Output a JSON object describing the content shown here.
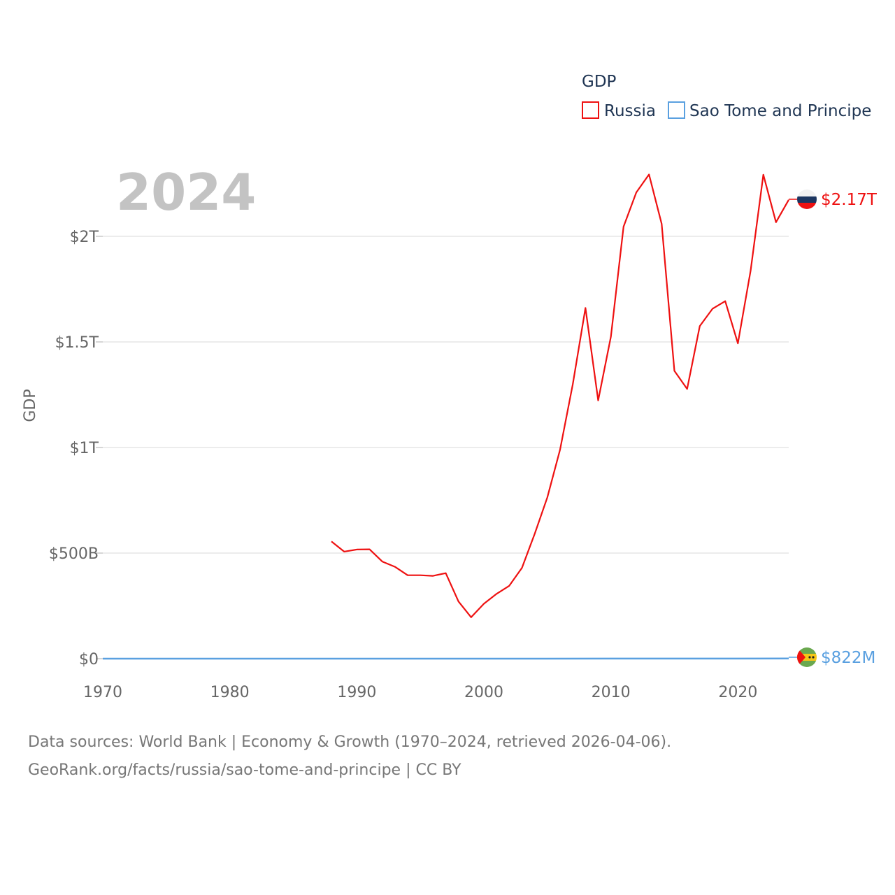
{
  "chart_data": {
    "type": "line",
    "year_watermark": "2024",
    "ylabel": "GDP",
    "xlim": [
      1970,
      2024
    ],
    "ylim": [
      0,
      2300000000000
    ],
    "x_ticks": [
      {
        "value": 1970,
        "label": "1970"
      },
      {
        "value": 1980,
        "label": "1980"
      },
      {
        "value": 1990,
        "label": "1990"
      },
      {
        "value": 2000,
        "label": "2000"
      },
      {
        "value": 2010,
        "label": "2010"
      },
      {
        "value": 2020,
        "label": "2020"
      }
    ],
    "y_ticks": [
      {
        "value": 0,
        "label": "$0"
      },
      {
        "value": 500000000000,
        "label": "$500B"
      },
      {
        "value": 1000000000000,
        "label": "$1T"
      },
      {
        "value": 1500000000000,
        "label": "$1.5T"
      },
      {
        "value": 2000000000000,
        "label": "$2T"
      }
    ],
    "legend": {
      "title": "GDP",
      "items": [
        {
          "label": "Russia",
          "color": "#ee1111"
        },
        {
          "label": "Sao Tome and Principe",
          "color": "#5aa0e0"
        }
      ]
    },
    "series": [
      {
        "name": "Russia",
        "color": "#ee1111",
        "end_label": "$2.17T",
        "flag_icon": "russia-flag-icon",
        "x": [
          1988,
          1989,
          1990,
          1991,
          1992,
          1993,
          1994,
          1995,
          1996,
          1997,
          1998,
          1999,
          2000,
          2001,
          2002,
          2003,
          2004,
          2005,
          2006,
          2007,
          2008,
          2009,
          2010,
          2011,
          2012,
          2013,
          2014,
          2015,
          2016,
          2017,
          2018,
          2019,
          2020,
          2021,
          2022,
          2023,
          2024
        ],
        "values": [
          555000000000.0,
          507000000000.0,
          517000000000.0,
          518000000000.0,
          460000000000.0,
          435000000000.0,
          395000000000.0,
          395000000000.0,
          392000000000.0,
          405000000000.0,
          271000000000.0,
          196000000000.0,
          260000000000.0,
          307000000000.0,
          345000000000.0,
          430000000000.0,
          591000000000.0,
          764000000000.0,
          990000000000.0,
          1300000000000.0,
          1661000000000.0,
          1223000000000.0,
          1525000000000.0,
          2046000000000.0,
          2208000000000.0,
          2293000000000.0,
          2059000000000.0,
          1363000000000.0,
          1277000000000.0,
          1575000000000.0,
          1657000000000.0,
          1693000000000.0,
          1493000000000.0,
          1837000000000.0,
          2292000000000.0,
          2067000000000.0,
          2173000000000.0
        ]
      },
      {
        "name": "Sao Tome and Principe",
        "color": "#5aa0e0",
        "end_label": "$822M",
        "flag_icon": "sao-tome-flag-icon",
        "x": [
          1970,
          1975,
          1980,
          1985,
          1990,
          1995,
          2000,
          2005,
          2010,
          2015,
          2020,
          2024
        ],
        "values": [
          20000000.0,
          40000000.0,
          50000000.0,
          60000000.0,
          70000000.0,
          80000000.0,
          90000000.0,
          120000000.0,
          200000000.0,
          320000000.0,
          470000000.0,
          822000000.0
        ]
      }
    ]
  },
  "footer": {
    "line1": "Data sources: World Bank | Economy & Growth (1970–2024, retrieved 2026-04-06).",
    "line2": "GeoRank.org/facts/russia/sao-tome-and-principe | CC BY"
  }
}
